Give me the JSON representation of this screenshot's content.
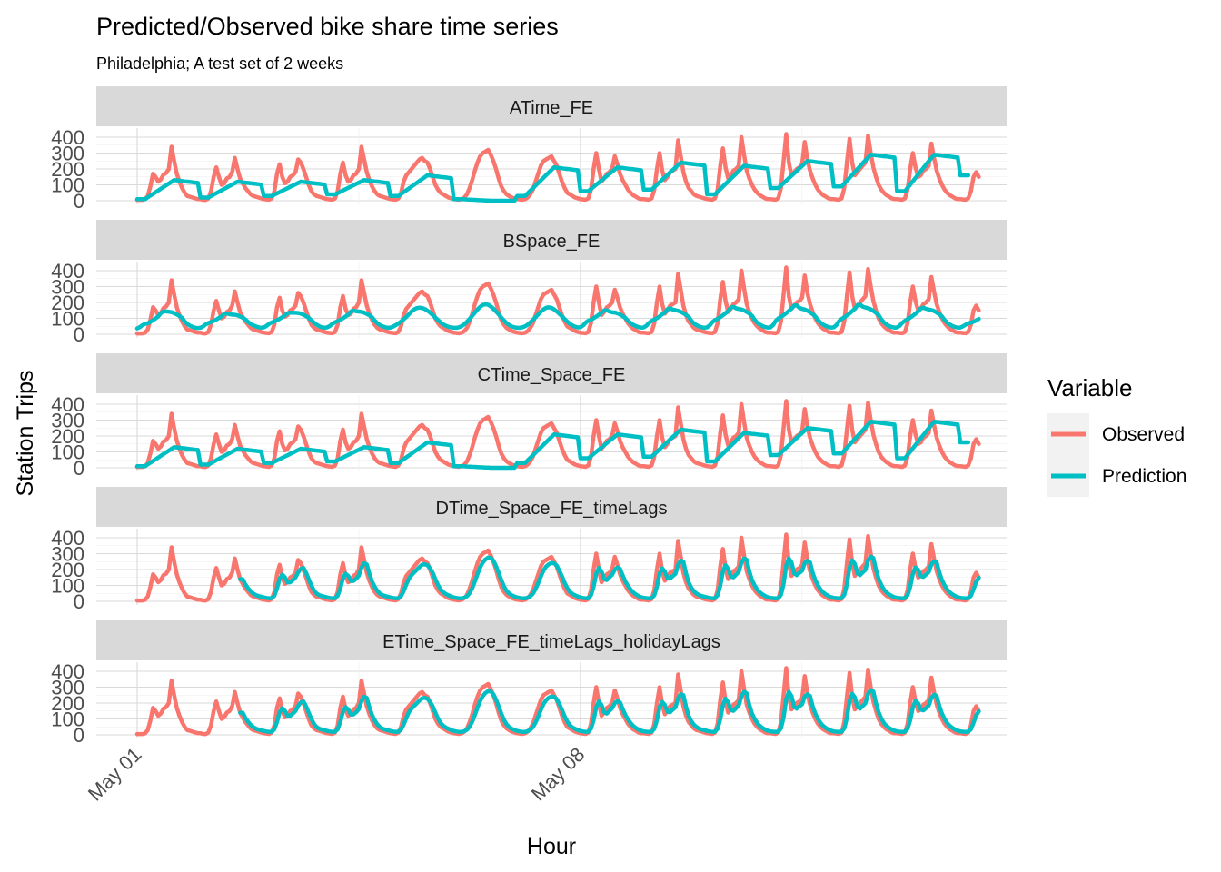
{
  "chart_data": {
    "type": "line",
    "title": "Predicted/Observed bike share time series",
    "subtitle": "Philadelphia; A test set of 2 weeks",
    "xlabel": "Hour",
    "ylabel": "Station Trips",
    "ylim": [
      0,
      400
    ],
    "yticks": [
      0,
      100,
      200,
      300,
      400
    ],
    "xlim_days": [
      -0.7,
      13.7
    ],
    "xticks": [
      {
        "label": "May 01",
        "day": 0
      },
      {
        "label": "May 08",
        "day": 7
      }
    ],
    "grid": true,
    "legend": {
      "title": "Variable",
      "position": "right",
      "entries": [
        {
          "name": "Observed",
          "color": "#f8766d"
        },
        {
          "name": "Prediction",
          "color": "#00bfc4"
        }
      ]
    },
    "day_range": [
      0,
      13.125
    ],
    "observed_profile": [
      {
        "day": 0,
        "values": [
          5,
          5,
          5,
          10,
          30,
          90,
          170,
          150,
          120,
          135,
          165,
          175,
          200,
          340,
          250,
          170,
          120,
          80,
          50,
          30,
          25,
          20,
          15,
          10
        ]
      },
      {
        "day": 1,
        "values": [
          10,
          5,
          5,
          15,
          60,
          150,
          210,
          150,
          100,
          110,
          140,
          150,
          180,
          270,
          200,
          140,
          110,
          80,
          60,
          40,
          30,
          25,
          20,
          15
        ]
      },
      {
        "day": 2,
        "values": [
          10,
          8,
          6,
          15,
          60,
          170,
          230,
          150,
          110,
          120,
          150,
          160,
          180,
          260,
          240,
          200,
          150,
          100,
          60,
          40,
          30,
          25,
          20,
          15
        ]
      },
      {
        "day": 3,
        "values": [
          10,
          8,
          6,
          15,
          60,
          170,
          240,
          160,
          120,
          130,
          160,
          170,
          200,
          340,
          260,
          180,
          130,
          90,
          60,
          40,
          30,
          25,
          20,
          15
        ]
      },
      {
        "day": 4,
        "values": [
          10,
          8,
          6,
          15,
          50,
          120,
          160,
          180,
          200,
          220,
          240,
          260,
          270,
          250,
          240,
          200,
          150,
          100,
          70,
          50,
          40,
          30,
          20,
          15
        ]
      },
      {
        "day": 5,
        "values": [
          10,
          8,
          6,
          10,
          20,
          40,
          80,
          130,
          190,
          240,
          280,
          300,
          310,
          320,
          290,
          250,
          200,
          140,
          90,
          60,
          40,
          30,
          20,
          15
        ]
      },
      {
        "day": 6,
        "values": [
          10,
          8,
          6,
          10,
          20,
          40,
          70,
          120,
          170,
          220,
          250,
          260,
          270,
          280,
          250,
          220,
          170,
          120,
          80,
          50,
          40,
          30,
          20,
          15
        ]
      },
      {
        "day": 7,
        "values": [
          10,
          8,
          6,
          15,
          70,
          200,
          300,
          200,
          120,
          140,
          170,
          180,
          200,
          280,
          230,
          170,
          130,
          100,
          70,
          50,
          35,
          25,
          15,
          10
        ]
      },
      {
        "day": 8,
        "values": [
          10,
          8,
          6,
          15,
          70,
          200,
          300,
          190,
          130,
          150,
          180,
          190,
          200,
          380,
          280,
          180,
          120,
          80,
          60,
          40,
          30,
          25,
          20,
          15
        ]
      },
      {
        "day": 9,
        "values": [
          10,
          8,
          6,
          15,
          70,
          220,
          330,
          210,
          140,
          160,
          190,
          200,
          220,
          400,
          290,
          190,
          140,
          100,
          70,
          50,
          35,
          25,
          15,
          10
        ]
      },
      {
        "day": 10,
        "values": [
          10,
          8,
          6,
          15,
          80,
          250,
          420,
          240,
          160,
          180,
          200,
          210,
          230,
          370,
          260,
          190,
          140,
          100,
          70,
          50,
          35,
          25,
          15,
          10
        ]
      },
      {
        "day": 11,
        "values": [
          10,
          8,
          6,
          15,
          80,
          240,
          390,
          240,
          160,
          180,
          200,
          220,
          240,
          410,
          300,
          210,
          150,
          100,
          70,
          50,
          35,
          25,
          15,
          10
        ]
      },
      {
        "day": 12,
        "values": [
          10,
          8,
          6,
          15,
          70,
          200,
          300,
          210,
          150,
          160,
          190,
          200,
          220,
          360,
          270,
          190,
          140,
          100,
          70,
          50,
          35,
          25,
          15,
          10
        ]
      },
      {
        "day": 13,
        "values": [
          10,
          8,
          6,
          15,
          60,
          150,
          180,
          150
        ]
      }
    ],
    "series": [
      {
        "name": "Observed",
        "color": "#f8766d"
      },
      {
        "name": "Prediction",
        "color": "#00bfc4"
      }
    ],
    "facets": [
      {
        "label": "ATime_FE",
        "prediction_model": "daily_level",
        "daily_level": [
          130,
          120,
          120,
          130,
          160,
          0,
          210,
          210,
          240,
          220,
          250,
          290,
          290,
          180
        ],
        "day_start_level": [
          10,
          20,
          30,
          40,
          30,
          10,
          30,
          60,
          70,
          40,
          80,
          90,
          60,
          160
        ]
      },
      {
        "label": "BSpace_FE",
        "prediction_model": "smoothed_observed",
        "scale": 0.6,
        "offset": 30
      },
      {
        "label": "CTime_Space_FE",
        "prediction_model": "daily_level",
        "daily_level": [
          130,
          120,
          120,
          130,
          160,
          0,
          210,
          210,
          240,
          220,
          250,
          290,
          290,
          180
        ],
        "day_start_level": [
          10,
          20,
          30,
          40,
          30,
          10,
          30,
          60,
          70,
          40,
          80,
          90,
          60,
          160
        ]
      },
      {
        "label": "DTime_Space_FE_timeLags",
        "prediction_model": "lagged_observed",
        "start_day": 1.6
      },
      {
        "label": "ETime_Space_FE_timeLags_holidayLags",
        "prediction_model": "lagged_observed",
        "start_day": 1.6
      }
    ]
  }
}
